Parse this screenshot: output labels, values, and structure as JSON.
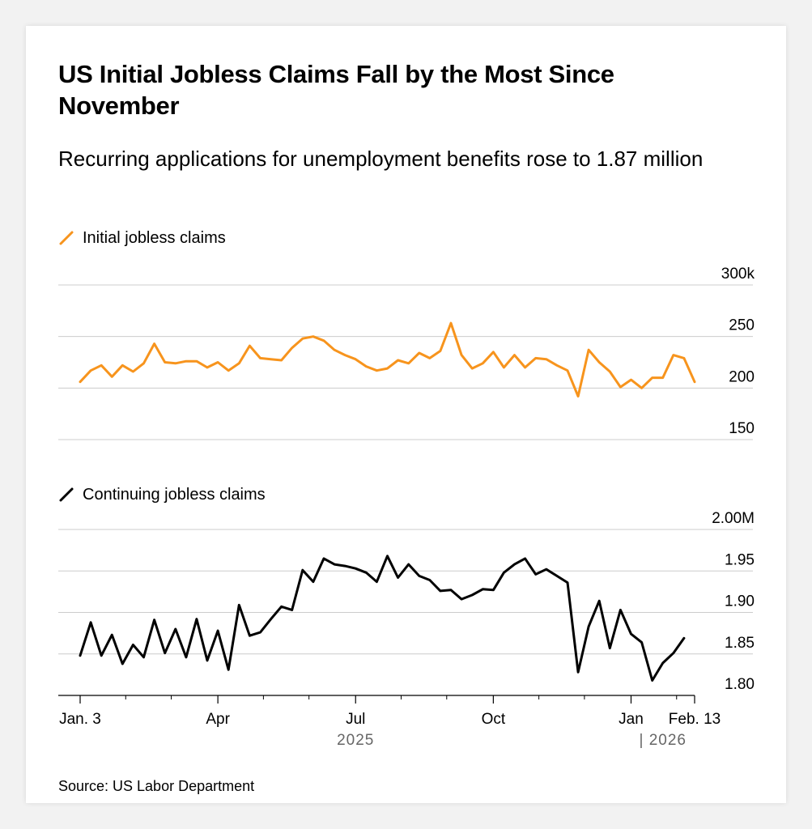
{
  "title": "US Initial Jobless Claims Fall by the Most Since November",
  "subtitle": "Recurring applications for unemployment benefits rose to 1.87 million",
  "source": "Source: US Labor Department",
  "colors": {
    "initial": "#f7941d",
    "continuing": "#000000",
    "grid": "#cccccc"
  },
  "chart_data": [
    {
      "type": "line",
      "title": "Initial jobless claims",
      "series": [
        {
          "name": "Initial jobless claims",
          "values": [
            206,
            217,
            222,
            211,
            222,
            216,
            224,
            243,
            225,
            224,
            226,
            226,
            220,
            225,
            217,
            224,
            241,
            229,
            228,
            227,
            239,
            248,
            250,
            246,
            237,
            232,
            228,
            221,
            217,
            219,
            227,
            224,
            234,
            229,
            236,
            263,
            232,
            219,
            224,
            235,
            220,
            232,
            220,
            229,
            228,
            222,
            217,
            192,
            237,
            225,
            216,
            201,
            208,
            200,
            210,
            210,
            232,
            229,
            206
          ]
        }
      ],
      "ylim": [
        150,
        300
      ],
      "yticks": [
        "300k",
        "250",
        "200",
        "150"
      ],
      "ytick_values": [
        300,
        250,
        200,
        150
      ]
    },
    {
      "type": "line",
      "title": "Continuing jobless claims",
      "series": [
        {
          "name": "Continuing jobless claims",
          "values": [
            1.848,
            1.888,
            1.848,
            1.873,
            1.838,
            1.861,
            1.846,
            1.891,
            1.851,
            1.88,
            1.846,
            1.892,
            1.842,
            1.878,
            1.831,
            1.909,
            1.872,
            1.876,
            1.892,
            1.907,
            1.903,
            1.951,
            1.937,
            1.965,
            1.958,
            1.956,
            1.953,
            1.948,
            1.937,
            1.968,
            1.942,
            1.958,
            1.944,
            1.939,
            1.926,
            1.927,
            1.916,
            1.921,
            1.928,
            1.927,
            1.948,
            1.958,
            1.965,
            1.946,
            1.952,
            1.944,
            1.936,
            1.828,
            1.883,
            1.914,
            1.857,
            1.903,
            1.874,
            1.864,
            1.818,
            1.839,
            1.851,
            1.869
          ]
        }
      ],
      "ylim": [
        1.8,
        2.0
      ],
      "yticks": [
        "2.00M",
        "1.95",
        "1.90",
        "1.85",
        "1.80"
      ],
      "ytick_values": [
        2.0,
        1.95,
        1.9,
        1.85,
        1.8
      ]
    }
  ],
  "x_axis": {
    "start_week": 0,
    "end_week": 58,
    "labels": [
      {
        "text": "Jan. 3",
        "week": 0
      },
      {
        "text": "Apr",
        "week": 13
      },
      {
        "text": "Jul",
        "week": 26
      },
      {
        "text": "Oct",
        "week": 39
      },
      {
        "text": "Jan",
        "week": 52
      },
      {
        "text": "Feb. 13",
        "week": 58
      }
    ],
    "minor_ticks": [
      4.3,
      8.6,
      17.3,
      21.6,
      30.3,
      34.6,
      43.3,
      47.6,
      56.3
    ],
    "years": [
      {
        "text": "2025",
        "week": 26
      },
      {
        "text": "| 2026",
        "week": 55
      }
    ]
  }
}
